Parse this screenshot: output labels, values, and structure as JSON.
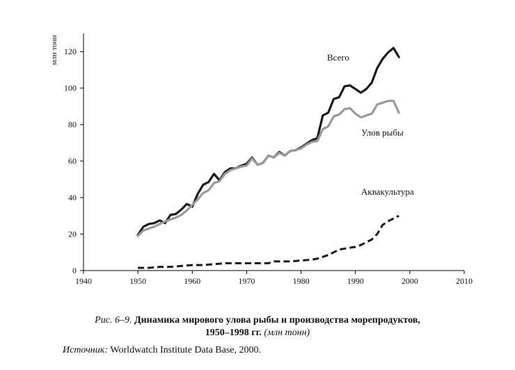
{
  "chart_data": {
    "type": "line",
    "ylabel": "млн тонн",
    "xlim": [
      1940,
      2010
    ],
    "ylim": [
      0,
      130
    ],
    "xticks": [
      1940,
      1950,
      1960,
      1970,
      1980,
      1990,
      2000,
      2010
    ],
    "yticks": [
      0,
      20,
      40,
      60,
      80,
      100,
      120
    ],
    "grid": false,
    "legend": "direct labels",
    "series": [
      {
        "name": "Всего",
        "color": "#1a1a1a",
        "style": "solid",
        "x": [
          1950,
          1951,
          1952,
          1953,
          1954,
          1955,
          1956,
          1957,
          1958,
          1959,
          1960,
          1961,
          1962,
          1963,
          1964,
          1965,
          1966,
          1967,
          1968,
          1969,
          1970,
          1971,
          1972,
          1973,
          1974,
          1975,
          1976,
          1977,
          1978,
          1979,
          1980,
          1981,
          1982,
          1983,
          1984,
          1985,
          1986,
          1987,
          1988,
          1989,
          1990,
          1991,
          1992,
          1993,
          1994,
          1995,
          1996,
          1997,
          1998
        ],
        "y": [
          19.5,
          24,
          25.5,
          26,
          27.5,
          26,
          30.5,
          31,
          33.5,
          36.5,
          35,
          42,
          47,
          48.5,
          53,
          49.5,
          54,
          56,
          56,
          57.5,
          58.5,
          62,
          58,
          59,
          63,
          62,
          65,
          63,
          65.5,
          66,
          67.5,
          69.5,
          71.5,
          72.5,
          85,
          86.5,
          94,
          95,
          101,
          101.5,
          99.5,
          97.5,
          99.5,
          103,
          111,
          116,
          119.5,
          122,
          117
        ]
      },
      {
        "name": "Улов рыбы",
        "color": "#999999",
        "style": "solid",
        "x": [
          1950,
          1951,
          1952,
          1953,
          1954,
          1955,
          1956,
          1957,
          1958,
          1959,
          1960,
          1961,
          1962,
          1963,
          1964,
          1965,
          1966,
          1967,
          1968,
          1969,
          1970,
          1971,
          1972,
          1973,
          1974,
          1975,
          1976,
          1977,
          1978,
          1979,
          1980,
          1981,
          1982,
          1983,
          1984,
          1985,
          1986,
          1987,
          1988,
          1989,
          1990,
          1991,
          1992,
          1993,
          1994,
          1995,
          1996,
          1997,
          1998
        ],
        "y": [
          19,
          22,
          23,
          24,
          25.5,
          27,
          28,
          29,
          30.5,
          33,
          36,
          39,
          42.5,
          44,
          48,
          49,
          53,
          55,
          56,
          57,
          57.5,
          61.5,
          58,
          59,
          63,
          62,
          64.5,
          63,
          65.5,
          66,
          67,
          69,
          70.5,
          71,
          77.5,
          79,
          84.5,
          85.5,
          88.5,
          89,
          86,
          84,
          85,
          86,
          91,
          92,
          93,
          93,
          86.5
        ]
      },
      {
        "name": "Аквакультура",
        "color": "#1a1a1a",
        "style": "dashed",
        "x": [
          1950,
          1952,
          1954,
          1956,
          1958,
          1960,
          1962,
          1964,
          1966,
          1968,
          1970,
          1972,
          1974,
          1975,
          1976,
          1978,
          1980,
          1982,
          1983,
          1984,
          1985,
          1986,
          1987,
          1988,
          1989,
          1990,
          1991,
          1992,
          1993,
          1994,
          1995,
          1996,
          1997,
          1998
        ],
        "y": [
          1.5,
          1.5,
          2,
          2,
          2.5,
          3,
          3,
          3.5,
          4,
          4,
          4,
          4,
          4,
          5,
          5,
          5,
          5.5,
          6,
          6.5,
          7.5,
          8.5,
          10,
          11.5,
          12,
          12.5,
          13,
          14,
          15.5,
          17,
          20,
          25,
          27,
          28.5,
          30
        ]
      }
    ]
  },
  "caption": {
    "prefix": "Рис. 6–9.",
    "title_line1": "Динамика мирового улова рыбы и производства морепродуктов,",
    "title_line2": "1950–1998 гг.",
    "units": "(млн тонн)"
  },
  "source": {
    "label": "Источник:",
    "text": "Worldwatch Institute Data Base, 2000."
  }
}
